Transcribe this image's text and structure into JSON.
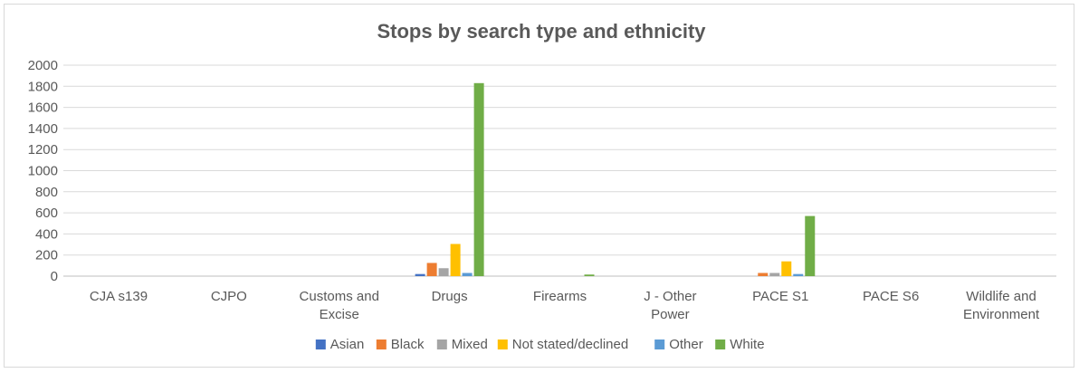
{
  "chart_data": {
    "type": "bar",
    "title": "Stops by search type and ethnicity",
    "xlabel": "",
    "ylabel": "",
    "ylim": [
      0,
      2000
    ],
    "yticks": [
      0,
      200,
      400,
      600,
      800,
      1000,
      1200,
      1400,
      1600,
      1800,
      2000
    ],
    "grid": true,
    "legend_position": "bottom",
    "categories": [
      [
        "CJA s139"
      ],
      [
        "CJPO"
      ],
      [
        "Customs and",
        "Excise"
      ],
      [
        "Drugs"
      ],
      [
        "Firearms"
      ],
      [
        "J - Other",
        "Power"
      ],
      [
        "PACE S1"
      ],
      [
        "PACE S6"
      ],
      [
        "Wildlife and",
        "Environment"
      ]
    ],
    "series": [
      {
        "name": "Asian",
        "color": "#4472c4",
        "values": [
          0,
          0,
          0,
          20,
          0,
          0,
          0,
          0,
          0
        ]
      },
      {
        "name": "Black",
        "color": "#ed7d31",
        "values": [
          0,
          0,
          0,
          125,
          0,
          0,
          30,
          0,
          0
        ]
      },
      {
        "name": "Mixed",
        "color": "#a5a5a5",
        "values": [
          0,
          0,
          0,
          75,
          0,
          0,
          30,
          0,
          0
        ]
      },
      {
        "name": "Not stated/declined",
        "color": "#ffc000",
        "values": [
          0,
          0,
          0,
          305,
          0,
          0,
          140,
          0,
          0
        ]
      },
      {
        "name": "Other",
        "color": "#5b9bd5",
        "values": [
          0,
          0,
          0,
          30,
          0,
          0,
          20,
          0,
          0
        ]
      },
      {
        "name": "White",
        "color": "#70ad47",
        "values": [
          0,
          0,
          0,
          1830,
          15,
          0,
          570,
          0,
          0
        ]
      }
    ]
  }
}
